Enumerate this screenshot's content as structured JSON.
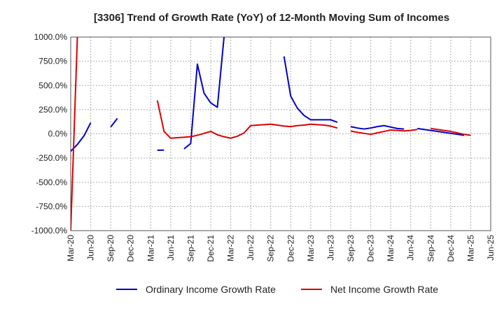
{
  "chart_data": {
    "type": "line",
    "title": "[3306]  Trend of Growth Rate (YoY) of 12-Month Moving Sum of Incomes",
    "xlabel": "",
    "ylabel": "",
    "ylim": [
      -1000,
      1000
    ],
    "yticks": [
      {
        "value": 1000,
        "label": "1000.0%"
      },
      {
        "value": 750,
        "label": "750.0%"
      },
      {
        "value": 500,
        "label": "500.0%"
      },
      {
        "value": 250,
        "label": "250.0%"
      },
      {
        "value": 0,
        "label": "0.0%"
      },
      {
        "value": -250,
        "label": "-250.0%"
      },
      {
        "value": -500,
        "label": "-500.0%"
      },
      {
        "value": -750,
        "label": "-750.0%"
      },
      {
        "value": -1000,
        "label": "-1000.0%"
      }
    ],
    "xticks": [
      "Mar-20",
      "Jun-20",
      "Sep-20",
      "Dec-20",
      "Mar-21",
      "Jun-21",
      "Sep-21",
      "Dec-21",
      "Mar-22",
      "Jun-22",
      "Sep-22",
      "Dec-22",
      "Mar-23",
      "Jun-23",
      "Sep-23",
      "Dec-23",
      "Mar-24",
      "Jun-24",
      "Sep-24",
      "Dec-24",
      "Mar-25",
      "Jun-25"
    ],
    "grid": true,
    "legend_position": "bottom",
    "x": [
      "Mar-20",
      "Apr-20",
      "May-20",
      "Jun-20",
      "Jul-20",
      "Aug-20",
      "Sep-20",
      "Oct-20",
      "Nov-20",
      "Dec-20",
      "Jan-21",
      "Feb-21",
      "Mar-21",
      "Apr-21",
      "May-21",
      "Jun-21",
      "Jul-21",
      "Aug-21",
      "Sep-21",
      "Oct-21",
      "Nov-21",
      "Dec-21",
      "Jan-22",
      "Feb-22",
      "Mar-22",
      "Apr-22",
      "May-22",
      "Jun-22",
      "Jul-22",
      "Aug-22",
      "Sep-22",
      "Oct-22",
      "Nov-22",
      "Dec-22",
      "Jan-23",
      "Feb-23",
      "Mar-23",
      "Apr-23",
      "May-23",
      "Jun-23",
      "Jul-23",
      "Aug-23",
      "Sep-23",
      "Oct-23",
      "Nov-23",
      "Dec-23",
      "Jan-24",
      "Feb-24",
      "Mar-24",
      "Apr-24",
      "May-24",
      "Jun-24",
      "Jul-24",
      "Aug-24",
      "Sep-24",
      "Oct-24",
      "Nov-24",
      "Dec-24",
      "Jan-25",
      "Feb-25",
      "Mar-25",
      "Apr-25",
      "May-25",
      "Jun-25"
    ],
    "series": [
      {
        "name": "Ordinary Income Growth Rate",
        "color": "#0000cc",
        "values": [
          -180,
          -110,
          -20,
          115,
          null,
          null,
          70,
          160,
          null,
          null,
          null,
          null,
          null,
          -170,
          -168,
          null,
          null,
          -155,
          -100,
          720,
          420,
          320,
          275,
          1000,
          null,
          null,
          null,
          null,
          null,
          null,
          null,
          null,
          800,
          390,
          265,
          190,
          145,
          145,
          145,
          145,
          120,
          null,
          75,
          60,
          50,
          60,
          75,
          85,
          70,
          55,
          50,
          null,
          55,
          45,
          35,
          25,
          15,
          5,
          -5,
          -15,
          null,
          null,
          null,
          null
        ]
      },
      {
        "name": "Net Income Growth Rate",
        "color": "#dd0000",
        "values": [
          -1000,
          1000,
          null,
          null,
          null,
          null,
          null,
          null,
          null,
          null,
          null,
          null,
          null,
          345,
          25,
          -45,
          -40,
          -35,
          -30,
          -15,
          5,
          25,
          -10,
          -30,
          -45,
          -25,
          10,
          85,
          90,
          95,
          100,
          90,
          80,
          75,
          85,
          90,
          100,
          95,
          90,
          80,
          60,
          null,
          30,
          15,
          5,
          -5,
          10,
          25,
          40,
          35,
          30,
          35,
          45,
          null,
          55,
          45,
          35,
          25,
          10,
          -5,
          -15,
          null,
          null,
          null
        ]
      }
    ]
  }
}
